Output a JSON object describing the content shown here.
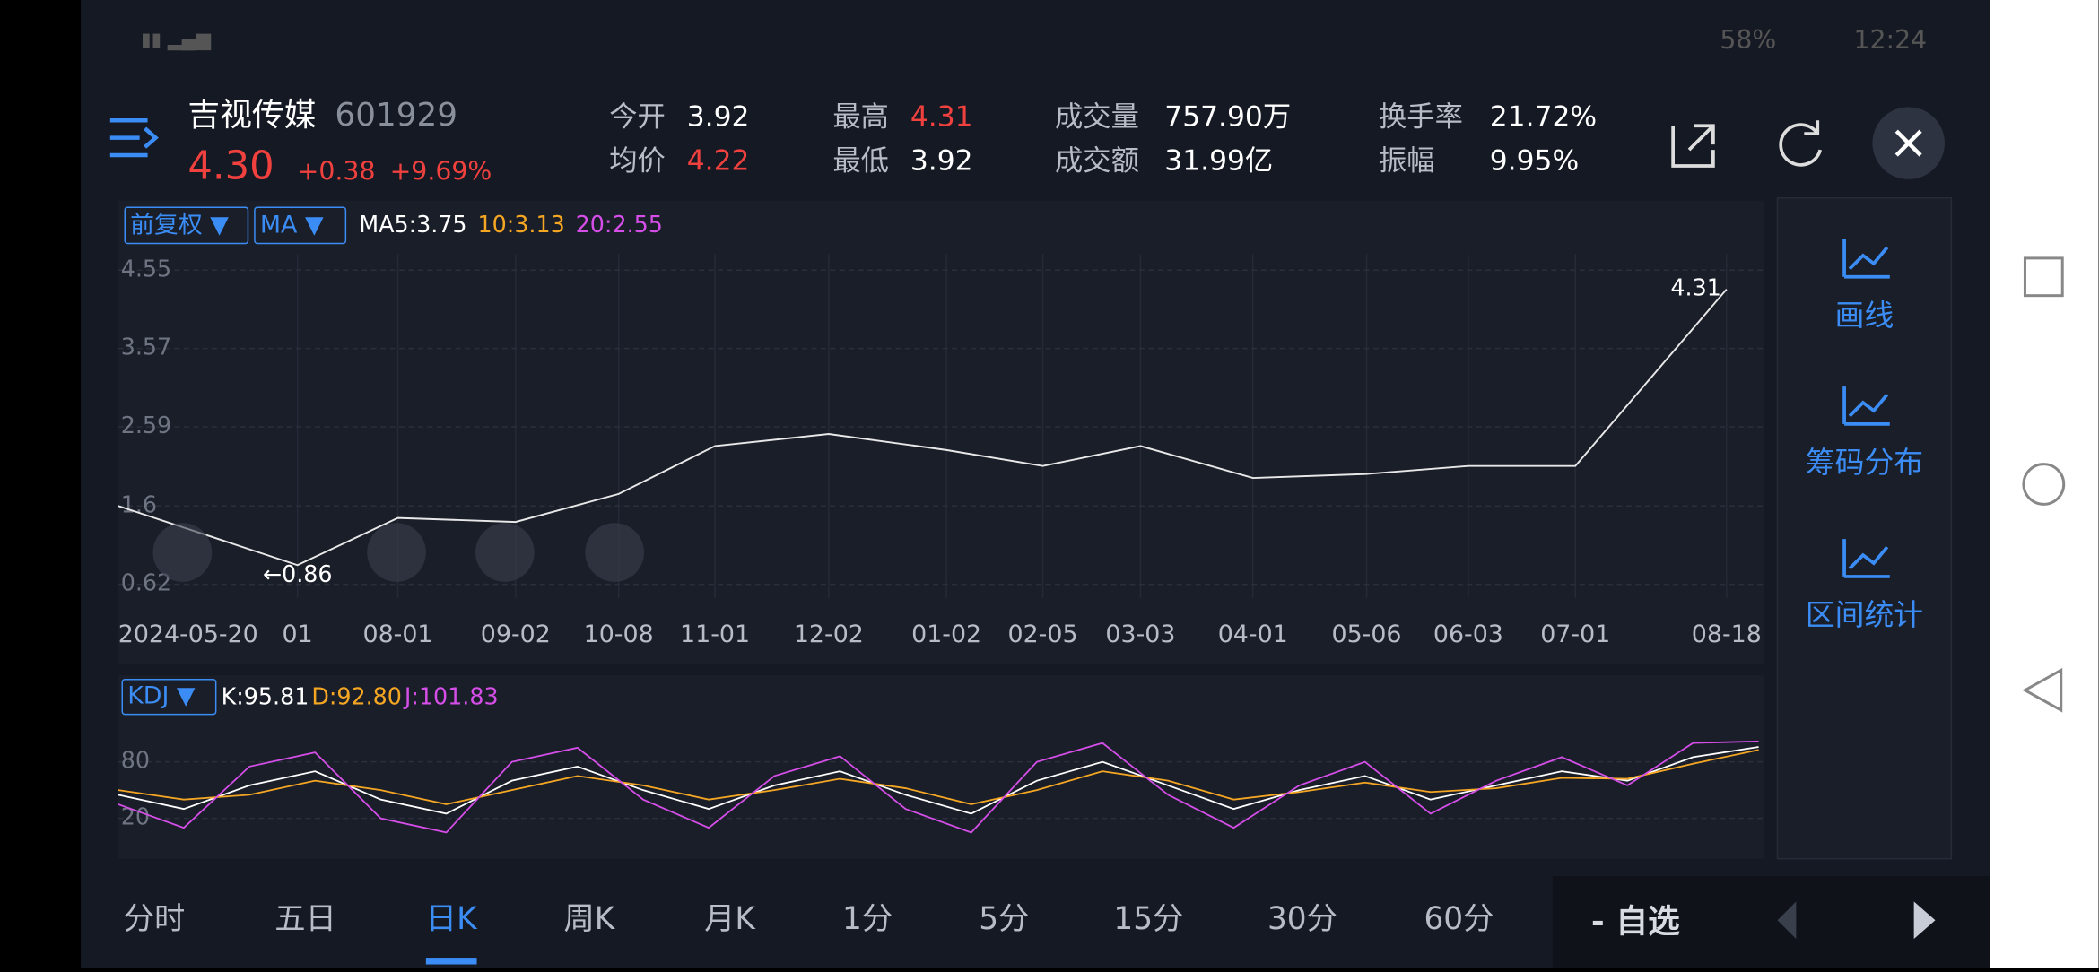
{
  "status": {
    "battery": "58%",
    "time": "12:24"
  },
  "header": {
    "name": "吉视传媒",
    "code": "601929",
    "price": "4.30",
    "change": "+0.38",
    "change_pct": "+9.69%"
  },
  "stats": [
    {
      "label": "今开",
      "value": "3.92",
      "color": "#ffffff"
    },
    {
      "label": "均价",
      "value": "4.22",
      "color": "#f0413f"
    },
    {
      "label": "最高",
      "value": "4.31",
      "color": "#f0413f"
    },
    {
      "label": "最低",
      "value": "3.92",
      "color": "#ffffff"
    },
    {
      "label": "成交量",
      "value": "757.90万",
      "color": "#ffffff"
    },
    {
      "label": "成交额",
      "value": "31.99亿",
      "color": "#ffffff"
    },
    {
      "label": "换手率",
      "value": "21.72%",
      "color": "#ffffff"
    },
    {
      "label": "振幅",
      "value": "9.95%",
      "color": "#ffffff"
    }
  ],
  "chart_data": [
    {
      "type": "line",
      "selectors": [
        "前复权 ▼",
        "MA ▼"
      ],
      "ma_labels": [
        {
          "text": "MA5:3.75",
          "color": "#ffffff"
        },
        {
          "text": "10:3.13",
          "color": "#f5a623"
        },
        {
          "text": "20:2.55",
          "color": "#d54ee8"
        }
      ],
      "categories": [
        "2024-05-20",
        "01",
        "08-01",
        "09-02",
        "10-08",
        "11-01",
        "12-02",
        "01-02",
        "02-05",
        "03-03",
        "04-01",
        "05-06",
        "06-03",
        "07-01",
        "08-18"
      ],
      "values": [
        1.6,
        0.86,
        1.45,
        1.4,
        1.75,
        2.35,
        2.5,
        2.3,
        2.1,
        2.35,
        1.95,
        2.0,
        2.1,
        2.1,
        4.31
      ],
      "color": "#e8e8e8",
      "ylim": [
        0.45,
        4.75
      ],
      "yticks": [
        4.55,
        3.57,
        2.59,
        1.6,
        0.62
      ],
      "annotations": [
        {
          "label": "4.31",
          "value": 4.31,
          "index": 14
        },
        {
          "label": "←0.86",
          "value": 0.86,
          "index": 1
        }
      ]
    },
    {
      "type": "line",
      "selector": "KDJ ▼",
      "legend": [
        {
          "text": "K:95.81",
          "color": "#ffffff"
        },
        {
          "text": "D:92.80",
          "color": "#f5a623"
        },
        {
          "text": "J:101.83",
          "color": "#d54ee8"
        }
      ],
      "ylim": [
        -20,
        122
      ],
      "yticks": [
        80,
        20
      ],
      "series": [
        {
          "color": "#ffffff",
          "values": [
            45,
            30,
            55,
            70,
            40,
            25,
            60,
            75,
            50,
            30,
            55,
            70,
            45,
            25,
            60,
            80,
            55,
            30,
            50,
            65,
            40,
            55,
            70,
            60,
            85,
            95.81
          ]
        },
        {
          "color": "#f5a623",
          "values": [
            50,
            40,
            45,
            60,
            50,
            35,
            50,
            65,
            55,
            40,
            50,
            62,
            52,
            35,
            50,
            70,
            60,
            40,
            48,
            58,
            48,
            52,
            63,
            62,
            78,
            92.8
          ]
        },
        {
          "color": "#d54ee8",
          "values": [
            35,
            10,
            75,
            90,
            20,
            5,
            80,
            95,
            40,
            10,
            65,
            86,
            30,
            5,
            80,
            100,
            45,
            10,
            55,
            80,
            25,
            60,
            85,
            55,
            100,
            101.83
          ]
        }
      ]
    }
  ],
  "tools": [
    "画线",
    "筹码分布",
    "区间统计"
  ],
  "tabs": {
    "items": [
      "分时",
      "五日",
      "日K",
      "周K",
      "月K",
      "1分",
      "5分",
      "15分",
      "30分",
      "60分"
    ],
    "selected": 2
  },
  "watchlist": "- 自选"
}
